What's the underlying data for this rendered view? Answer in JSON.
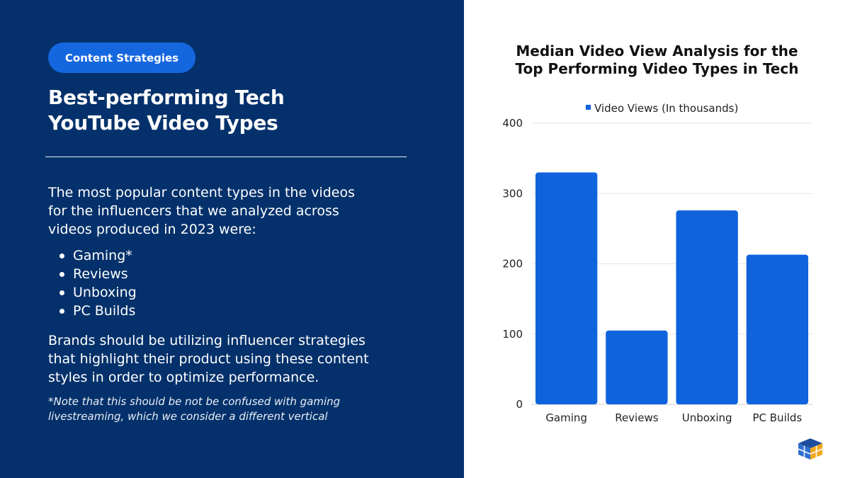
{
  "left_panel": {
    "tag": "Content Strategies",
    "heading_lines": [
      "Best-performing Tech",
      "YouTube Video Types"
    ],
    "intro_lines": [
      "The most popular content types in the videos",
      "for the influencers that we analyzed across",
      "videos produced in 2023 were:"
    ],
    "bullets": [
      "Gaming*",
      "Reviews",
      "Unboxing",
      "PC Builds"
    ],
    "closing_lines": [
      "Brands should be utilizing influencer strategies",
      "that highlight their product using these content",
      "styles in order to optimize performance."
    ],
    "note_lines": [
      "*Note that this should be not be confused with gaming",
      "livestreaming, which we consider a different vertical"
    ]
  },
  "colors": {
    "panel_bg": "#04316b",
    "accent": "#1467df",
    "bar": "#0f63dd",
    "grid": "#e6e6e6"
  },
  "chart_data": {
    "type": "bar",
    "title_lines": [
      "Median Video View Analysis for the",
      "Top Performing Video Types in Tech"
    ],
    "categories": [
      "Gaming",
      "Reviews",
      "Unboxing",
      "PC Builds"
    ],
    "series": [
      {
        "name": "Video Views (In thousands)",
        "values": [
          330,
          105,
          276,
          213
        ]
      }
    ],
    "ylim": [
      0,
      400
    ],
    "yticks": [
      0,
      100,
      200,
      300,
      400
    ],
    "grid": true,
    "legend_position": "top"
  }
}
